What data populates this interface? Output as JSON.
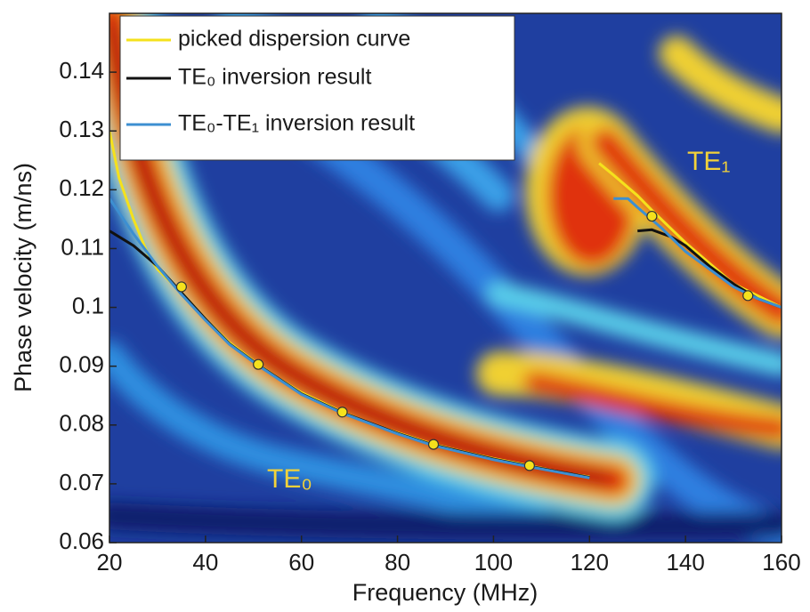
{
  "chart_data": {
    "type": "line",
    "xlabel": "Frequency (MHz)",
    "ylabel": "Phase velocity (m/ns)",
    "xlim": [
      20,
      160
    ],
    "ylim": [
      0.06,
      0.15
    ],
    "xticks": [
      20,
      40,
      60,
      80,
      100,
      120,
      140,
      160
    ],
    "yticks": [
      0.06,
      0.07,
      0.08,
      0.09,
      0.1,
      0.11,
      0.12,
      0.13,
      0.14
    ],
    "legend": "upper-left",
    "series": [
      {
        "name": "picked dispersion curve",
        "color": "#f5e11c",
        "x": [
          20,
          22,
          25,
          28,
          30,
          35,
          40,
          45,
          51,
          55,
          60,
          68.5,
          75,
          80,
          87.5,
          95,
          100,
          107.5,
          115,
          120,
          121,
          122,
          125,
          130,
          133,
          140,
          145,
          150,
          155,
          160
        ],
        "values": [
          0.13,
          0.122,
          0.115,
          0.109,
          0.1065,
          0.1025,
          0.098,
          0.094,
          0.0903,
          0.088,
          0.0855,
          0.0822,
          0.08,
          0.0787,
          0.0767,
          0.0752,
          0.0743,
          0.0731,
          0.0718,
          0.0712,
          null,
          0.1245,
          0.1225,
          0.119,
          0.1165,
          0.111,
          0.1075,
          0.104,
          0.102,
          0.1
        ]
      },
      {
        "name": "TE₀ inversion result",
        "color": "#111111",
        "x": [
          20,
          25,
          30,
          35,
          40,
          45,
          51,
          60,
          68.5,
          80,
          87.5,
          100,
          107.5,
          120,
          121,
          130,
          133,
          137,
          140,
          145,
          150,
          155,
          160
        ],
        "values": [
          0.113,
          0.1105,
          0.107,
          0.1025,
          0.098,
          0.0938,
          0.0902,
          0.0853,
          0.0821,
          0.0786,
          0.0766,
          0.0742,
          0.073,
          0.0711,
          null,
          0.113,
          0.1132,
          0.112,
          0.1105,
          0.107,
          0.104,
          0.1015,
          0.1
        ]
      },
      {
        "name": "TE₀-TE₁  inversion result",
        "color": "#3d8fd1",
        "x": [
          20,
          25,
          30,
          35,
          40,
          45,
          51,
          60,
          68.5,
          80,
          87.5,
          100,
          107.5,
          120,
          121,
          125,
          128,
          130,
          135,
          140,
          145,
          150,
          155,
          160
        ],
        "values": [
          0.1185,
          0.1125,
          0.107,
          0.1022,
          0.0978,
          0.0937,
          0.0901,
          0.0852,
          0.082,
          0.0785,
          0.0765,
          0.0741,
          0.0729,
          0.071,
          null,
          0.1185,
          0.1185,
          0.117,
          0.1135,
          0.1095,
          0.1065,
          0.1035,
          0.1015,
          0.1
        ]
      }
    ],
    "markers": {
      "color": "#f5e11c",
      "x": [
        35,
        51,
        68.5,
        87.5,
        107.5,
        133,
        153
      ],
      "values": [
        0.1035,
        0.0903,
        0.0822,
        0.0767,
        0.0731,
        0.1155,
        0.102
      ]
    },
    "annotations": [
      "TE₀",
      "TE₁"
    ]
  }
}
